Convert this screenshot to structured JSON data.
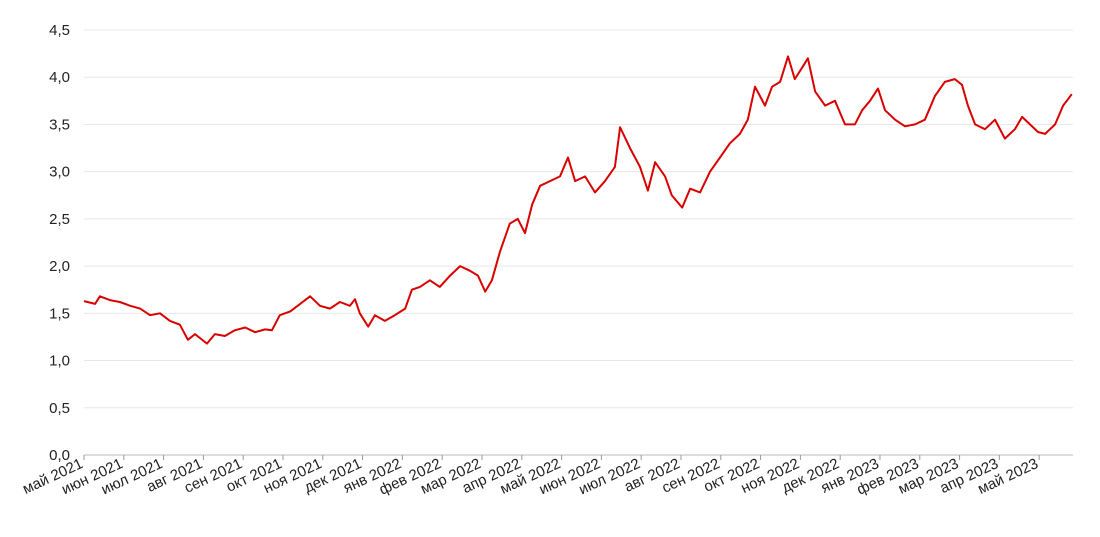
{
  "chart_data": {
    "type": "line",
    "x": [
      0,
      0.28,
      0.4,
      0.65,
      0.9,
      1.16,
      1.41,
      1.66,
      1.91,
      2.16,
      2.41,
      2.61,
      2.79,
      3.09,
      3.29,
      3.54,
      3.79,
      4.05,
      4.3,
      4.55,
      4.72,
      4.92,
      5.18,
      5.43,
      5.68,
      5.93,
      6.18,
      6.43,
      6.68,
      6.81,
      6.93,
      7.14,
      7.31,
      7.56,
      7.81,
      8.07,
      8.24,
      8.44,
      8.69,
      8.94,
      9.2,
      9.45,
      9.7,
      9.9,
      10.08,
      10.25,
      10.45,
      10.7,
      10.9,
      11.08,
      11.26,
      11.46,
      11.71,
      11.96,
      12.16,
      12.34,
      12.59,
      12.84,
      13.09,
      13.34,
      13.47,
      13.72,
      13.97,
      14.17,
      14.35,
      14.6,
      14.77,
      15.03,
      15.23,
      15.48,
      15.73,
      15.98,
      16.23,
      16.48,
      16.68,
      16.86,
      17.11,
      17.29,
      17.49,
      17.69,
      17.86,
      18.04,
      18.19,
      18.37,
      18.62,
      18.87,
      19.12,
      19.37,
      19.55,
      19.75,
      19.95,
      20.13,
      20.38,
      20.63,
      20.88,
      21.13,
      21.38,
      21.63,
      21.88,
      22.06,
      22.21,
      22.39,
      22.64,
      22.89,
      23.14,
      23.39,
      23.57,
      23.77,
      23.97,
      24.15,
      24.4,
      24.6,
      24.82
    ],
    "series": [
      {
        "color": "#d90000",
        "values": [
          1.63,
          1.6,
          1.68,
          1.64,
          1.62,
          1.58,
          1.55,
          1.48,
          1.5,
          1.42,
          1.38,
          1.22,
          1.28,
          1.18,
          1.28,
          1.26,
          1.32,
          1.35,
          1.3,
          1.33,
          1.32,
          1.48,
          1.52,
          1.6,
          1.68,
          1.58,
          1.55,
          1.62,
          1.58,
          1.65,
          1.5,
          1.36,
          1.48,
          1.42,
          1.48,
          1.55,
          1.75,
          1.78,
          1.85,
          1.78,
          1.9,
          2.0,
          1.95,
          1.9,
          1.73,
          1.85,
          2.15,
          2.45,
          2.5,
          2.35,
          2.65,
          2.85,
          2.9,
          2.95,
          3.15,
          2.9,
          2.95,
          2.78,
          2.9,
          3.05,
          3.47,
          3.25,
          3.05,
          2.8,
          3.1,
          2.95,
          2.75,
          2.62,
          2.82,
          2.78,
          3.0,
          3.15,
          3.3,
          3.4,
          3.55,
          3.9,
          3.7,
          3.9,
          3.95,
          4.22,
          3.98,
          4.1,
          4.2,
          3.85,
          3.7,
          3.75,
          3.5,
          3.5,
          3.65,
          3.75,
          3.88,
          3.65,
          3.55,
          3.48,
          3.5,
          3.55,
          3.8,
          3.95,
          3.98,
          3.92,
          3.7,
          3.5,
          3.45,
          3.55,
          3.35,
          3.45,
          3.58,
          3.5,
          3.42,
          3.4,
          3.5,
          3.7,
          3.82
        ]
      }
    ],
    "xlim": [
      0,
      24.85
    ],
    "xticks": [
      {
        "value": 0,
        "label": "май 2021"
      },
      {
        "value": 1,
        "label": "июн 2021"
      },
      {
        "value": 2,
        "label": "июл 2021"
      },
      {
        "value": 3,
        "label": "авг 2021"
      },
      {
        "value": 4,
        "label": "сен 2021"
      },
      {
        "value": 5,
        "label": "окт 2021"
      },
      {
        "value": 6,
        "label": "ноя 2021"
      },
      {
        "value": 7,
        "label": "дек 2021"
      },
      {
        "value": 8,
        "label": "янв 2022"
      },
      {
        "value": 9,
        "label": "фев 2022"
      },
      {
        "value": 10,
        "label": "мар 2022"
      },
      {
        "value": 11,
        "label": "апр 2022"
      },
      {
        "value": 12,
        "label": "май 2022"
      },
      {
        "value": 13,
        "label": "июн 2022"
      },
      {
        "value": 14,
        "label": "июл 2022"
      },
      {
        "value": 15,
        "label": "авг 2022"
      },
      {
        "value": 16,
        "label": "сен 2022"
      },
      {
        "value": 17,
        "label": "окт 2022"
      },
      {
        "value": 18,
        "label": "ноя 2022"
      },
      {
        "value": 19,
        "label": "дек 2022"
      },
      {
        "value": 20,
        "label": "янв 2023"
      },
      {
        "value": 21,
        "label": "фев 2023"
      },
      {
        "value": 22,
        "label": "мар 2023"
      },
      {
        "value": 23,
        "label": "апр 2023"
      },
      {
        "value": 24,
        "label": "май 2023"
      }
    ],
    "ylim": [
      0,
      4.5
    ],
    "yticks": [
      {
        "value": 0,
        "label": "0,0"
      },
      {
        "value": 0.5,
        "label": "0,5"
      },
      {
        "value": 1,
        "label": "1,0"
      },
      {
        "value": 1.5,
        "label": "1,5"
      },
      {
        "value": 2,
        "label": "2,0"
      },
      {
        "value": 2.5,
        "label": "2,5"
      },
      {
        "value": 3,
        "label": "3,0"
      },
      {
        "value": 3.5,
        "label": "3,5"
      },
      {
        "value": 4,
        "label": "4,0"
      },
      {
        "value": 4.5,
        "label": "4,5"
      }
    ],
    "grid": true
  }
}
